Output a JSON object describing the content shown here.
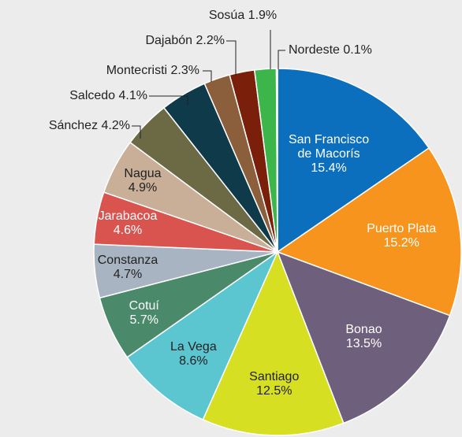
{
  "chart_data": {
    "type": "pie",
    "categories": [
      "San Francisco de Macorís",
      "Puerto Plata",
      "Bonao",
      "Santiago",
      "La Vega",
      "Cotuí",
      "Constanza",
      "Jarabacoa",
      "Nagua",
      "Sánchez",
      "Salcedo",
      "Montecristi",
      "Dajabón",
      "Sosúa",
      "Nordeste"
    ],
    "values": [
      15.4,
      15.2,
      13.5,
      12.5,
      8.6,
      5.7,
      4.7,
      4.6,
      4.9,
      4.2,
      4.1,
      2.3,
      2.2,
      1.9,
      0.1
    ],
    "value_labels": [
      "15.4%",
      "15.2%",
      "13.5%",
      "12.5%",
      "8.6%",
      "5.7%",
      "4.7%",
      "4.6%",
      "4.9%",
      "4.2%",
      "4.1%",
      "2.3%",
      "2.2%",
      "1.9%",
      "0.1%"
    ],
    "colors": [
      "#0b6fbd",
      "#f7941d",
      "#6e5f7d",
      "#d7df23",
      "#5bc5d0",
      "#4a8a6a",
      "#a9b4c2",
      "#d9534f",
      "#c9ae98",
      "#6c6a45",
      "#0e3a4a",
      "#8b5e3c",
      "#7a1f0a",
      "#3cb54a",
      "#d6006e"
    ]
  }
}
